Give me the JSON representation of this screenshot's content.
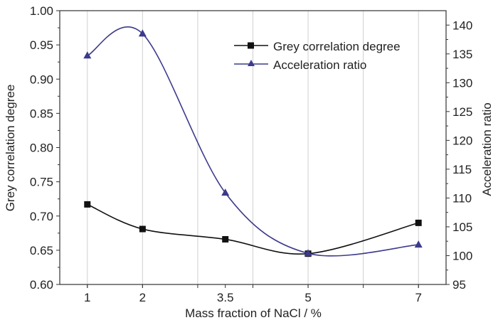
{
  "chart_data": {
    "type": "line",
    "title": "",
    "xlabel": "Mass fraction of NaCl / %",
    "ylabel_left": "Grey correlation degree",
    "ylabel_right": "Acceleration ratio",
    "xlim": [
      0.5,
      7.5
    ],
    "ylim_left": [
      0.6,
      1.0
    ],
    "ylim_right": [
      95,
      142.5
    ],
    "x_ticks": [
      1,
      2,
      3.5,
      5,
      7
    ],
    "x_tick_labels": [
      "1",
      "2",
      "3.5",
      "5",
      "7"
    ],
    "x_grid": [
      1,
      2,
      3,
      4,
      5,
      6,
      7
    ],
    "y_left_ticks": [
      "0.60",
      "0.65",
      "0.70",
      "0.75",
      "0.80",
      "0.85",
      "0.90",
      "0.95",
      "1.00"
    ],
    "y_right_ticks": [
      "95",
      "100",
      "105",
      "110",
      "115",
      "120",
      "125",
      "130",
      "135",
      "140"
    ],
    "grid": "vertical",
    "legend_position": "top-right",
    "x": [
      1,
      2,
      3.5,
      5,
      7
    ],
    "series": [
      {
        "name": "Grey correlation degree",
        "axis": "left",
        "marker": "square",
        "color": "#111111",
        "values": [
          0.717,
          0.681,
          0.666,
          0.645,
          0.69
        ]
      },
      {
        "name": "Acceleration ratio",
        "axis": "right",
        "marker": "triangle",
        "color": "#3c3a8c",
        "values": [
          134.7,
          138.5,
          110.9,
          100.4,
          101.9
        ]
      }
    ]
  }
}
